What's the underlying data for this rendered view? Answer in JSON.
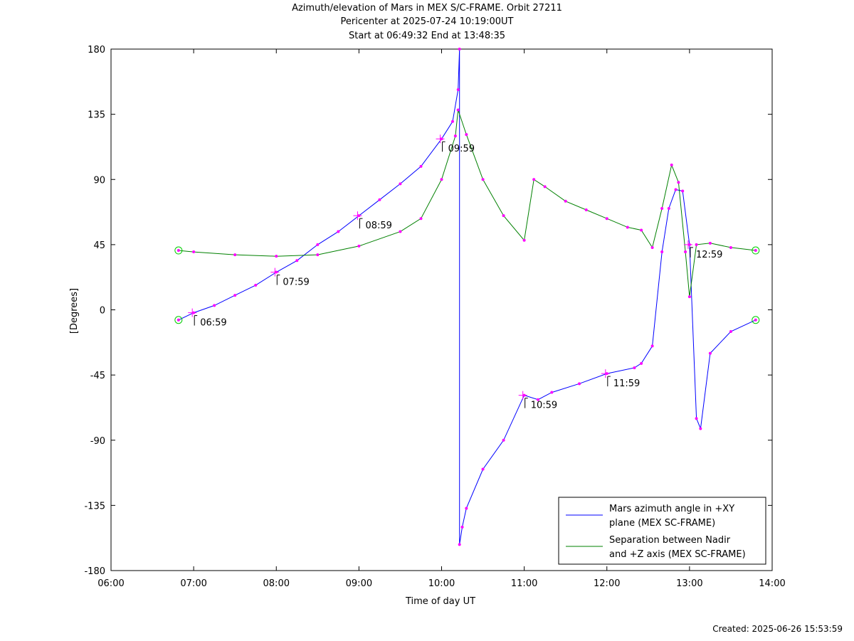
{
  "header": {
    "title": "Azimuth/elevation of Mars in MEX S/C-FRAME.  Orbit 27211",
    "subtitle1": "Pericenter at 2025-07-24 10:19:00UT",
    "subtitle2": "Start at 06:49:32 End at 13:48:35"
  },
  "footer": {
    "created": "Created: 2025-06-26 15:53:59"
  },
  "chart_data": {
    "type": "line",
    "xlabel": "Time of day UT",
    "ylabel": "[Degrees]",
    "xlim": [
      "06:00",
      "14:00"
    ],
    "ylim": [
      -180,
      180
    ],
    "x_ticks": [
      "06:00",
      "07:00",
      "08:00",
      "09:00",
      "10:00",
      "11:00",
      "12:00",
      "13:00",
      "14:00"
    ],
    "y_ticks": [
      180,
      135,
      90,
      45,
      0,
      -45,
      -90,
      -135,
      -180
    ],
    "legend_position": "bottom-right",
    "grid": false,
    "colors": {
      "azimuth": "#0000ff",
      "separation": "#008000",
      "markers": "#ff00ff",
      "endpoints": "#00cc00"
    },
    "series": [
      {
        "name": "Mars azimuth angle in +XY plane (MEX SC-FRAME)",
        "legend_lines": [
          "Mars azimuth angle in +XY",
          "plane (MEX SC-FRAME)"
        ],
        "color": "#0000ff",
        "points": [
          [
            "06:49",
            -7
          ],
          [
            "07:00",
            -2
          ],
          [
            "07:15",
            3
          ],
          [
            "07:30",
            10
          ],
          [
            "07:45",
            17
          ],
          [
            "08:00",
            26
          ],
          [
            "08:15",
            34
          ],
          [
            "08:30",
            45
          ],
          [
            "08:45",
            54
          ],
          [
            "09:00",
            65
          ],
          [
            "09:15",
            76
          ],
          [
            "09:30",
            87
          ],
          [
            "09:45",
            99
          ],
          [
            "10:00",
            118
          ],
          [
            "10:08",
            130
          ],
          [
            "10:12",
            152
          ],
          [
            "10:13",
            180
          ],
          [
            "10:13",
            -162
          ],
          [
            "10:15",
            -150
          ],
          [
            "10:18",
            -137
          ],
          [
            "10:30",
            -110
          ],
          [
            "10:45",
            -90
          ],
          [
            "11:00",
            -59
          ],
          [
            "11:10",
            -62
          ],
          [
            "11:20",
            -57
          ],
          [
            "11:40",
            -51
          ],
          [
            "12:00",
            -44
          ],
          [
            "12:20",
            -40
          ],
          [
            "12:25",
            -37
          ],
          [
            "12:33",
            -25
          ],
          [
            "12:40",
            40
          ],
          [
            "12:45",
            70
          ],
          [
            "12:50",
            83
          ],
          [
            "12:55",
            82
          ],
          [
            "13:00",
            45
          ],
          [
            "13:05",
            -75
          ],
          [
            "13:08",
            -82
          ],
          [
            "13:15",
            -30
          ],
          [
            "13:30",
            -15
          ],
          [
            "13:48",
            -7
          ]
        ]
      },
      {
        "name": "Separation between Nadir and +Z axis (MEX SC-FRAME)",
        "legend_lines": [
          "Separation between Nadir",
          "and +Z axis (MEX SC-FRAME)"
        ],
        "color": "#008000",
        "points": [
          [
            "06:49",
            41
          ],
          [
            "07:00",
            40
          ],
          [
            "07:30",
            38
          ],
          [
            "08:00",
            37
          ],
          [
            "08:30",
            38
          ],
          [
            "09:00",
            44
          ],
          [
            "09:30",
            54
          ],
          [
            "09:45",
            63
          ],
          [
            "10:00",
            90
          ],
          [
            "10:10",
            120
          ],
          [
            "10:12",
            138
          ],
          [
            "10:18",
            121
          ],
          [
            "10:30",
            90
          ],
          [
            "10:45",
            65
          ],
          [
            "11:00",
            48
          ],
          [
            "11:07",
            90
          ],
          [
            "11:15",
            85
          ],
          [
            "11:30",
            75
          ],
          [
            "11:45",
            69
          ],
          [
            "12:00",
            63
          ],
          [
            "12:15",
            57
          ],
          [
            "12:25",
            55
          ],
          [
            "12:33",
            43
          ],
          [
            "12:40",
            70
          ],
          [
            "12:47",
            100
          ],
          [
            "12:52",
            88
          ],
          [
            "12:57",
            40
          ],
          [
            "13:00",
            9
          ],
          [
            "13:05",
            45
          ],
          [
            "13:15",
            46
          ],
          [
            "13:30",
            43
          ],
          [
            "13:48",
            41
          ]
        ]
      }
    ],
    "annotations": [
      {
        "time": "06:59",
        "value": -2
      },
      {
        "time": "07:59",
        "value": 26
      },
      {
        "time": "08:59",
        "value": 65
      },
      {
        "time": "09:59",
        "value": 118
      },
      {
        "time": "10:59",
        "value": -59
      },
      {
        "time": "11:59",
        "value": -44
      },
      {
        "time": "12:59",
        "value": 45
      }
    ]
  }
}
